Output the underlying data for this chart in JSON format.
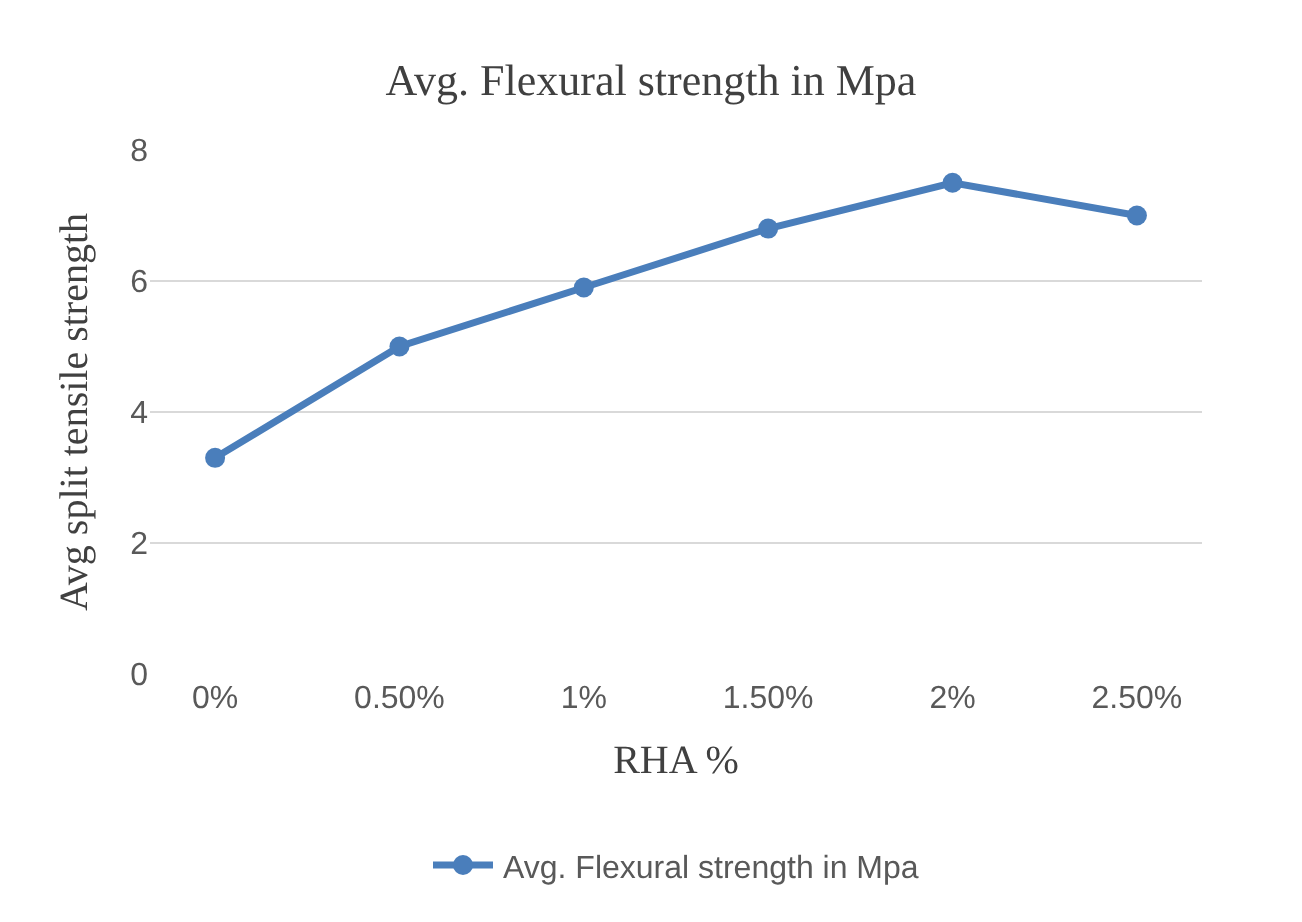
{
  "chart_data": {
    "type": "line",
    "title": "Avg. Flexural strength in Mpa",
    "xlabel": "RHA %",
    "ylabel": "Avg split tensile strength",
    "categories": [
      "0%",
      "0.50%",
      "1%",
      "1.50%",
      "2%",
      "2.50%"
    ],
    "series": [
      {
        "name": "Avg. Flexural strength in Mpa",
        "color": "#4a7ebb",
        "values": [
          3.3,
          5.0,
          5.9,
          6.8,
          7.5,
          7.0
        ]
      }
    ],
    "ylim": [
      0,
      8
    ],
    "yticks": [
      0,
      2,
      4,
      6,
      8
    ],
    "grid": "y",
    "legend": "bottom",
    "marker": "circle",
    "line_style": "solid"
  }
}
